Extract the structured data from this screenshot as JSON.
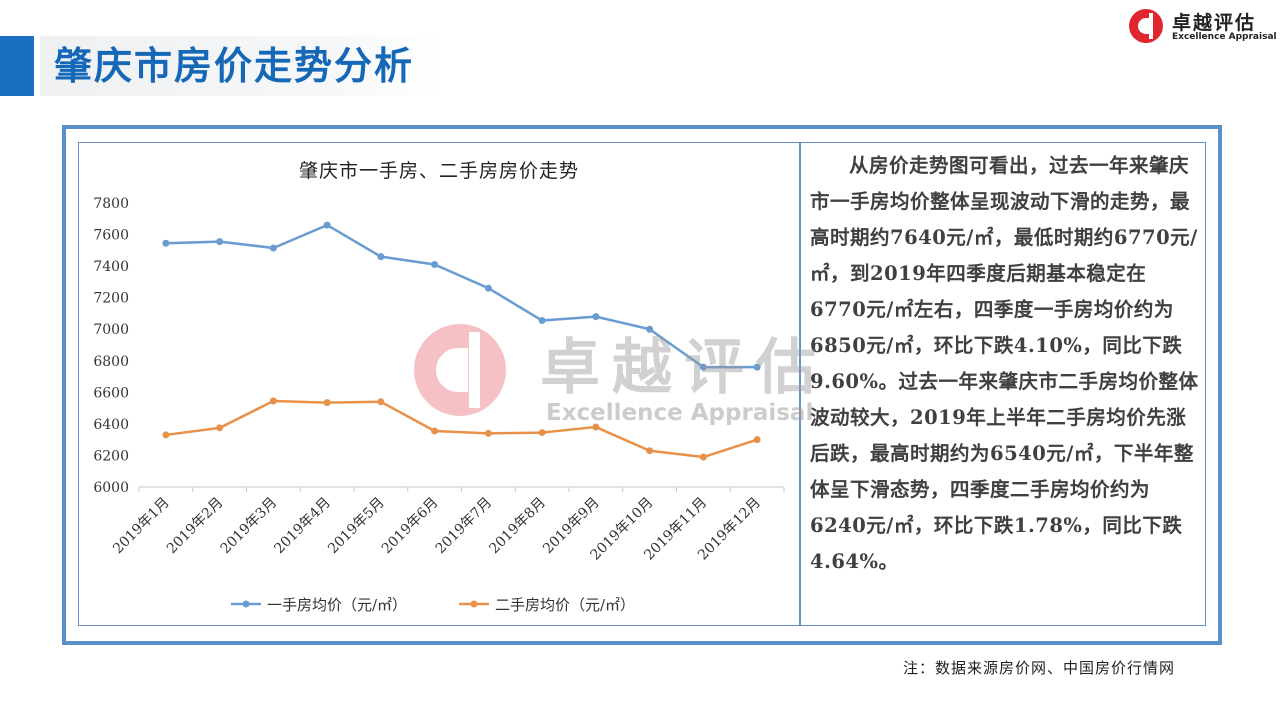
{
  "page": {
    "title": "肇庆市房价走势分析",
    "footnote": "注：数据来源房价网、中国房价行情网"
  },
  "logo": {
    "name_cn": "卓越评估",
    "name_en": "Excellence Appraisal",
    "color": "#e0262f"
  },
  "watermark": {
    "name_cn": "卓越评估",
    "name_en": "Excellence Appraisal"
  },
  "analysis": {
    "text": "从房价走势图可看出，过去一年来肇庆市一手房均价整体呈现波动下滑的走势，最高时期约7640元/㎡，最低时期约6770元/㎡，到2019年四季度后期基本稳定在6770元/㎡左右，四季度一手房均价约为6850元/㎡，环比下跌4.10%，同比下跌9.60%。过去一年来肇庆市二手房均价整体波动较大，2019年上半年二手房均价先涨后跌，最高时期约为6540元/㎡，下半年整体呈下滑态势，四季度二手房均价约为6240元/㎡，环比下跌1.78%，同比下跌4.64%。"
  },
  "chart_data": {
    "type": "line",
    "title": "肇庆市一手房、二手房房价走势",
    "categories": [
      "2019年1月",
      "2019年2月",
      "2019年3月",
      "2019年4月",
      "2019年5月",
      "2019年6月",
      "2019年7月",
      "2019年8月",
      "2019年9月",
      "2019年10月",
      "2019年11月",
      "2019年12月"
    ],
    "series": [
      {
        "name": "一手房均价（元/㎡）",
        "color": "#6a9bd1",
        "values": [
          7545,
          7555,
          7515,
          7660,
          7460,
          7410,
          7260,
          7055,
          7080,
          7000,
          6760,
          6760
        ]
      },
      {
        "name": "二手房均价（元/㎡）",
        "color": "#e8914a",
        "values": [
          6330,
          6375,
          6545,
          6535,
          6540,
          6355,
          6340,
          6345,
          6380,
          6230,
          6190,
          6300
        ]
      }
    ],
    "yticks": [
      6000,
      6200,
      6400,
      6600,
      6800,
      7000,
      7200,
      7400,
      7600,
      7800
    ],
    "ylim": [
      6000,
      7800
    ],
    "grid": false,
    "legend_position": "bottom"
  }
}
